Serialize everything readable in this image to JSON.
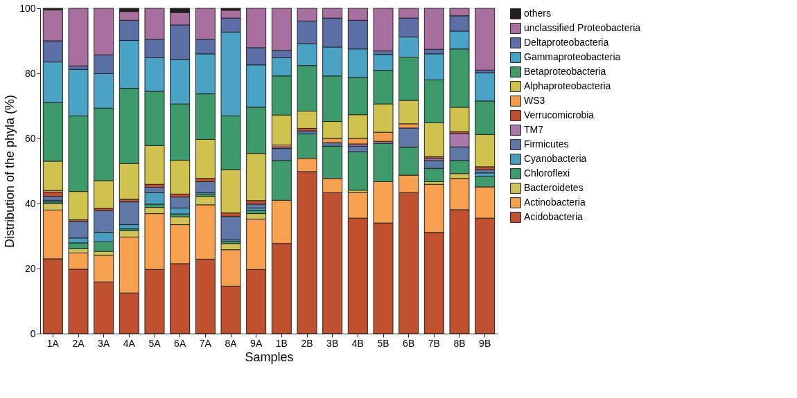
{
  "chart_data": {
    "type": "bar",
    "stacked": true,
    "xlabel": "Samples",
    "ylabel": "Distribution of the phyla (%)",
    "categories": [
      "1A",
      "2A",
      "3A",
      "4A",
      "5A",
      "6A",
      "7A",
      "8A",
      "9A",
      "1B",
      "2B",
      "3B",
      "4B",
      "5B",
      "6B",
      "7B",
      "8B",
      "9B"
    ],
    "ylim": [
      0,
      100
    ],
    "yticks": [
      0,
      20,
      40,
      60,
      80,
      100
    ],
    "grid": false,
    "legend": "right",
    "series": [
      {
        "name": "Acidobacteria",
        "color": "#bf5030",
        "values": [
          23,
          19.8,
          15.9,
          12.5,
          19.7,
          21.5,
          22.9,
          14.6,
          19.7,
          27.7,
          49.8,
          43.3,
          35.5,
          34,
          43.3,
          31.1,
          38.1,
          35.5
        ]
      },
      {
        "name": "Actinobacteria",
        "color": "#f7a04f",
        "values": [
          15,
          5,
          8.2,
          17.2,
          17.2,
          12,
          16.7,
          11.2,
          15.5,
          13.3,
          4.1,
          4.4,
          7.8,
          12.7,
          5.4,
          14.8,
          9.6,
          9.6
        ]
      },
      {
        "name": "Bacteroidetes",
        "color": "#cfc35a",
        "values": [
          2,
          1.3,
          1.2,
          1.9,
          1.9,
          2.4,
          2.6,
          1.9,
          1.7,
          0,
          0,
          0,
          0.8,
          0,
          0,
          0.8,
          1.5,
          null
        ]
      },
      {
        "name": "Chloroflexi",
        "color": "#3f9a6c",
        "values": [
          0.5,
          1.8,
          2.9,
          0.6,
          1,
          0.9,
          0.7,
          0.6,
          1,
          12.2,
          7.5,
          9.9,
          11.8,
          11.8,
          8.6,
          4.1,
          4,
          3.3
        ]
      },
      {
        "name": "Cyanobacteria",
        "color": "#4a9ec0",
        "values": [
          0.5,
          1.5,
          2.9,
          1.3,
          3.5,
          1.8,
          0.4,
          0.5,
          0.7,
          0,
          0,
          0,
          0,
          0,
          0,
          0,
          0,
          1
        ]
      },
      {
        "name": "Firmicutes",
        "color": "#5f78a8",
        "values": [
          1.2,
          5.1,
          6.7,
          7,
          1.7,
          3.4,
          3.4,
          7.2,
          1.2,
          3.7,
          0.9,
          1.1,
          1.7,
          0,
          5.9,
          2.4,
          4.2,
          1
        ]
      },
      {
        "name": "TM7",
        "color": "#a879a8",
        "values": [
          null,
          0,
          0,
          0,
          0,
          0,
          0,
          0,
          0,
          0.5,
          0,
          0,
          0.7,
          0.6,
          0,
          0.7,
          4.1,
          0
        ]
      },
      {
        "name": "Verrucomicrobia",
        "color": "#bf4f30",
        "values": [
          1.3,
          0.5,
          0.7,
          0.8,
          0.9,
          0.9,
          1,
          1.1,
          1.1,
          0,
          0.8,
          0,
          0,
          0,
          0,
          0.5,
          0.6,
          0.9
        ]
      },
      {
        "name": "WS3",
        "color": "#f59a4b",
        "values": [
          0.5,
          0,
          0,
          0,
          0,
          0,
          0,
          0,
          0,
          0.6,
          0,
          1.3,
          1.7,
          2.8,
          1.3,
          0,
          0,
          0
        ]
      },
      {
        "name": "Alphaproteobacteria",
        "color": "#cfc24f",
        "values": [
          9,
          8.7,
          8.5,
          11,
          11.9,
          10.4,
          12,
          13.3,
          14.5,
          9.2,
          5.3,
          5.2,
          7.3,
          8.7,
          7.2,
          10.4,
          7.5,
          9.9
        ]
      },
      {
        "name": "Betaproteobacteria",
        "color": "#3d9a6a",
        "values": [
          18,
          23.2,
          22.3,
          23.1,
          16.7,
          17.3,
          14,
          16.5,
          14.2,
          12,
          14,
          14,
          11.4,
          10.3,
          13.3,
          13.2,
          17.9,
          10.3
        ]
      },
      {
        "name": "Gammaproteobacteria",
        "color": "#4aa3c4",
        "values": [
          12.5,
          14.3,
          10.6,
          14.7,
          10.3,
          13.7,
          12.3,
          25.8,
          13,
          5.6,
          6.7,
          8.9,
          8.8,
          4.9,
          6.2,
          8,
          5.5,
          8.7
        ]
      },
      {
        "name": "Deltaproteobacteria",
        "color": "#5b6fa6",
        "values": [
          6.5,
          1.1,
          5.8,
          6.2,
          5.7,
          10.6,
          4.5,
          4.3,
          5.3,
          2.3,
          7,
          8.9,
          8.8,
          1.1,
          5.8,
          1.4,
          4.7,
          0.8
        ]
      },
      {
        "name": "unclassified Proteobacteria",
        "color": "#a86f9f",
        "values": [
          9.5,
          17.7,
          14.3,
          2.7,
          9.5,
          3.8,
          9.5,
          2.4,
          12.1,
          12.9,
          3.9,
          3,
          3.7,
          13.1,
          3,
          12.6,
          2.3,
          19
        ]
      },
      {
        "name": "others",
        "color": "#231f20",
        "values": [
          0.5,
          0,
          0,
          1,
          0,
          1.3,
          0,
          0.6,
          0,
          0,
          0,
          0,
          0,
          0,
          0,
          0,
          0,
          0
        ]
      }
    ]
  }
}
